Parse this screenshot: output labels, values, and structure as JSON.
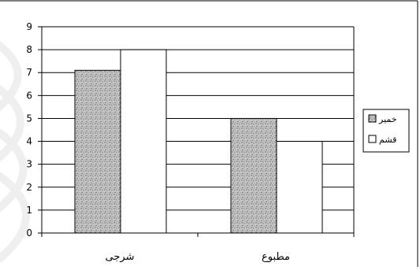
{
  "chart_data": {
    "type": "bar",
    "categories": [
      "شرجی",
      "مطبوع"
    ],
    "series": [
      {
        "name": "خمیر",
        "values": [
          7.1,
          5
        ],
        "pattern": "stipple"
      },
      {
        "name": "قشم",
        "values": [
          8,
          4
        ],
        "pattern": "white"
      }
    ],
    "title": "",
    "xlabel": "",
    "ylabel": "",
    "ylim": [
      0,
      9
    ],
    "yticks": [
      0,
      1,
      2,
      3,
      4,
      5,
      6,
      7,
      8,
      9
    ],
    "grid": true,
    "legend_position": "right"
  },
  "colors": {
    "background": "#ffffff",
    "frame": "#000000",
    "gridline": "#000000",
    "stipple_dot": "#555555",
    "stipple_fill": "#c8c8c8",
    "bar_white": "#ffffff",
    "watermark": "#efefef"
  }
}
